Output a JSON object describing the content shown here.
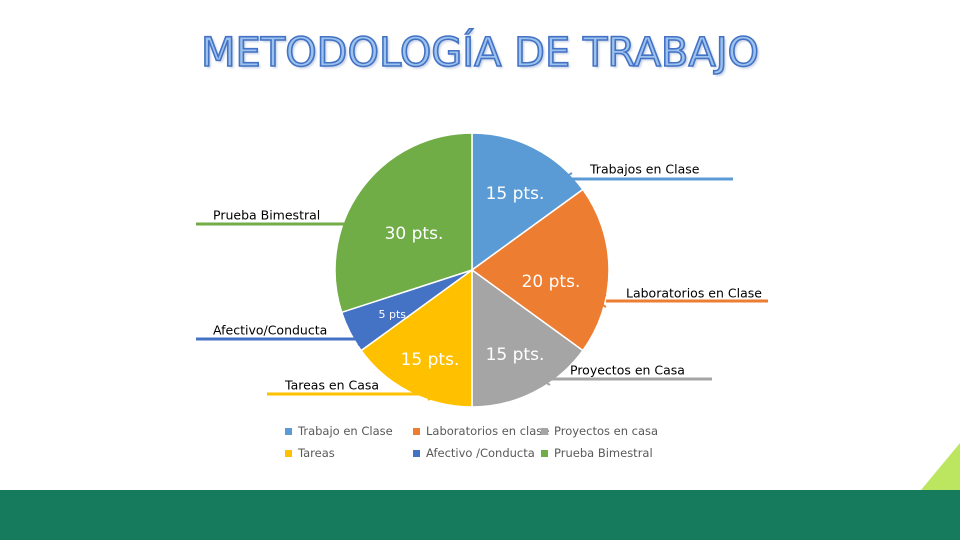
{
  "slide": {
    "title": "METODOLOGÍA DE TRABAJO",
    "colors": {
      "title_fill": "#9cc3ee",
      "title_stroke": "#4472c4",
      "bottom_band": "#167a5c",
      "corner_accent": "#bce65f"
    }
  },
  "chart_data": {
    "type": "pie",
    "title": "",
    "start_angle_deg": 0,
    "direction": "clockwise",
    "categories": [
      "Trabajo en Clase",
      "Laboratorios en clase",
      "Proyectos en casa",
      "Tareas",
      "Afectivo /Conducta",
      "Prueba Bimestral"
    ],
    "values": [
      15,
      20,
      15,
      15,
      5,
      30
    ],
    "unit": "pts.",
    "data_labels": [
      "15 pts.",
      "20 pts.",
      "15 pts.",
      "15 pts.",
      "5 pts.",
      "30 pts."
    ],
    "colors": [
      "#5b9bd5",
      "#ed7d31",
      "#a5a5a5",
      "#ffc000",
      "#4472c4",
      "#70ad47"
    ],
    "legend": {
      "position": "bottom",
      "entries": [
        "Trabajo en Clase",
        "Laboratorios en clase",
        "Proyectos en casa",
        "Tareas",
        "Afectivo /Conducta",
        "Prueba Bimestral"
      ]
    },
    "callouts": [
      {
        "text": "Trabajos en Clase",
        "color": "#5b9bd5",
        "side": "right"
      },
      {
        "text": "Laboratorios en Clase",
        "color": "#ed7d31",
        "side": "right"
      },
      {
        "text": "Proyectos en Casa",
        "color": "#a5a5a5",
        "side": "right"
      },
      {
        "text": "Tareas en Casa",
        "color": "#ffc000",
        "side": "left"
      },
      {
        "text": "Afectivo/Conducta",
        "color": "#4472c4",
        "side": "left"
      },
      {
        "text": "Prueba Bimestral",
        "color": "#70ad47",
        "side": "left"
      }
    ]
  }
}
